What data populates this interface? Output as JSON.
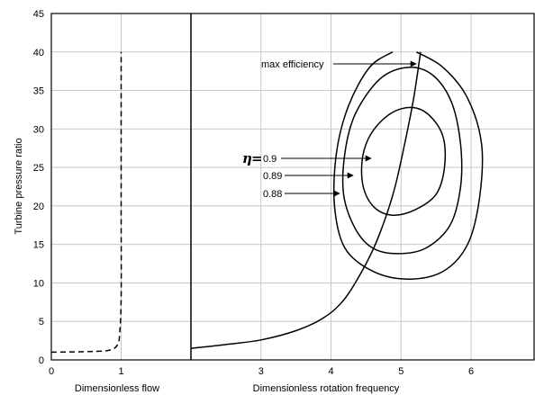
{
  "chart_data": {
    "type": "line",
    "title": "",
    "ylabel": "Turbine pressure ratio",
    "xlabel_flow": "Dimensionless flow",
    "xlabel_speed": "Dimensionless rotation frequency",
    "flow_axis": {
      "range": [
        0,
        2
      ],
      "ticks": [
        "0",
        "1"
      ]
    },
    "speed_axis": {
      "range": [
        2,
        6.9
      ],
      "ticks": [
        "3",
        "4",
        "5",
        "6"
      ]
    },
    "ylim": [
      0,
      45
    ],
    "yticks": [
      "0",
      "5",
      "10",
      "15",
      "20",
      "25",
      "30",
      "35",
      "40",
      "45"
    ],
    "grid": true,
    "eta_symbol": "η",
    "eta_equals": "=",
    "annotations": {
      "max_efficiency": "max efficiency",
      "eta_09": "0.9",
      "eta_089": "0.89",
      "eta_088": "0.88"
    },
    "flow_curve": {
      "style": "dashed",
      "points": [
        [
          0.0,
          1.0
        ],
        [
          0.6,
          1.1
        ],
        [
          0.85,
          1.3
        ],
        [
          0.95,
          2.0
        ],
        [
          0.98,
          3.5
        ],
        [
          1.0,
          8
        ],
        [
          1.0,
          20
        ],
        [
          1.0,
          40
        ]
      ]
    },
    "operating_line": {
      "style": "solid",
      "points": [
        [
          2.0,
          1.5
        ],
        [
          2.5,
          2.0
        ],
        [
          3.0,
          2.6
        ],
        [
          3.5,
          3.8
        ],
        [
          3.9,
          5.5
        ],
        [
          4.2,
          8.0
        ],
        [
          4.5,
          12.5
        ],
        [
          4.7,
          16.5
        ],
        [
          4.9,
          22
        ],
        [
          5.05,
          28
        ],
        [
          5.18,
          34
        ],
        [
          5.28,
          40
        ]
      ]
    },
    "efficiency_contours": [
      {
        "eta": 0.9,
        "points": [
          [
            5.15,
            32.8
          ],
          [
            5.4,
            31.8
          ],
          [
            5.6,
            29.0
          ],
          [
            5.62,
            25.0
          ],
          [
            5.5,
            21.5
          ],
          [
            5.2,
            19.5
          ],
          [
            4.88,
            18.8
          ],
          [
            4.62,
            19.8
          ],
          [
            4.46,
            22.5
          ],
          [
            4.45,
            26.3
          ],
          [
            4.58,
            29.5
          ],
          [
            4.85,
            32.0
          ]
        ]
      },
      {
        "eta": 0.89,
        "points": [
          [
            5.1,
            38.0
          ],
          [
            5.45,
            37.0
          ],
          [
            5.72,
            33.5
          ],
          [
            5.85,
            28.0
          ],
          [
            5.85,
            22.5
          ],
          [
            5.7,
            17.5
          ],
          [
            5.35,
            14.5
          ],
          [
            4.95,
            13.8
          ],
          [
            4.6,
            14.5
          ],
          [
            4.35,
            17.0
          ],
          [
            4.18,
            21.5
          ],
          [
            4.2,
            27.0
          ],
          [
            4.35,
            32.0
          ],
          [
            4.7,
            36.5
          ]
        ]
      },
      {
        "eta": 0.88,
        "points": [
          [
            5.22,
            40.0
          ],
          [
            5.6,
            38.0
          ],
          [
            5.95,
            34.0
          ],
          [
            6.15,
            28.0
          ],
          [
            6.12,
            21.0
          ],
          [
            5.95,
            15.0
          ],
          [
            5.6,
            11.5
          ],
          [
            5.1,
            10.5
          ],
          [
            4.6,
            11.5
          ],
          [
            4.2,
            14.5
          ],
          [
            4.05,
            20.0
          ],
          [
            4.08,
            27.0
          ],
          [
            4.25,
            33.0
          ],
          [
            4.55,
            38.0
          ],
          [
            4.88,
            40.0
          ]
        ],
        "open": true
      }
    ]
  }
}
